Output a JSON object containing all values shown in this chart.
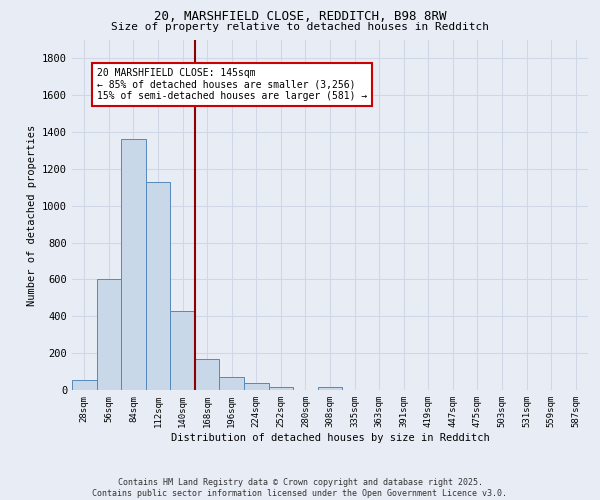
{
  "title1": "20, MARSHFIELD CLOSE, REDDITCH, B98 8RW",
  "title2": "Size of property relative to detached houses in Redditch",
  "xlabel": "Distribution of detached houses by size in Redditch",
  "ylabel": "Number of detached properties",
  "bin_labels": [
    "28sqm",
    "56sqm",
    "84sqm",
    "112sqm",
    "140sqm",
    "168sqm",
    "196sqm",
    "224sqm",
    "252sqm",
    "280sqm",
    "308sqm",
    "335sqm",
    "363sqm",
    "391sqm",
    "419sqm",
    "447sqm",
    "475sqm",
    "503sqm",
    "531sqm",
    "559sqm",
    "587sqm"
  ],
  "bar_values": [
    55,
    605,
    1360,
    1130,
    430,
    170,
    68,
    38,
    18,
    0,
    18,
    0,
    0,
    0,
    0,
    0,
    0,
    0,
    0,
    0,
    0
  ],
  "bar_color": "#c8d8e8",
  "bar_edge_color": "#5588bb",
  "ylim": [
    0,
    1900
  ],
  "yticks": [
    0,
    200,
    400,
    600,
    800,
    1000,
    1200,
    1400,
    1600,
    1800
  ],
  "vline_x": 4.5,
  "vline_color": "#8b0000",
  "annotation_title": "20 MARSHFIELD CLOSE: 145sqm",
  "annotation_line1": "← 85% of detached houses are smaller (3,256)",
  "annotation_line2": "15% of semi-detached houses are larger (581) →",
  "annotation_box_color": "white",
  "annotation_box_edge": "#cc0000",
  "footer1": "Contains HM Land Registry data © Crown copyright and database right 2025.",
  "footer2": "Contains public sector information licensed under the Open Government Licence v3.0.",
  "bg_color": "#e8edf5",
  "grid_color": "#d0d8e8"
}
